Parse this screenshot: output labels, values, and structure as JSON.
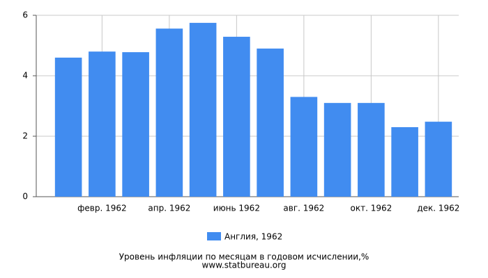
{
  "chart_data": {
    "type": "bar",
    "categories": [
      null,
      "февр. 1962",
      null,
      "апр. 1962",
      null,
      "июнь 1962",
      null,
      "авг. 1962",
      null,
      "окт. 1962",
      null,
      "дек. 1962"
    ],
    "series": [
      {
        "name": "Англия, 1962",
        "color": "#418cf0",
        "values": [
          4.6,
          4.8,
          4.78,
          5.56,
          5.75,
          5.29,
          4.9,
          3.3,
          3.1,
          3.1,
          2.3,
          2.48
        ]
      }
    ],
    "ylim": [
      0,
      6
    ],
    "yticks": [
      0,
      2,
      4,
      6
    ],
    "grid": true,
    "title": "Уровень инфляции по месяцам в годовом исчислении,%",
    "subtitle": "www.statbureau.org"
  }
}
